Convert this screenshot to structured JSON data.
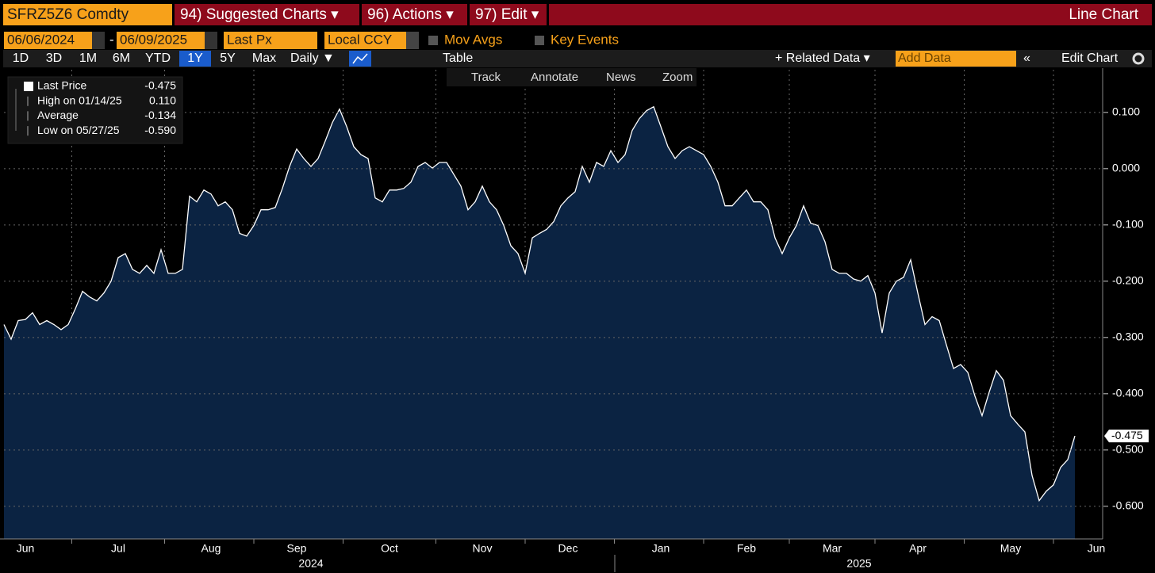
{
  "header": {
    "ticker": "SFRZ5Z6 Comdty",
    "menus": [
      "94) Suggested Charts ▾",
      "96) Actions ▾",
      "97) Edit ▾"
    ],
    "chart_type_label": "Line Chart"
  },
  "controls": {
    "start_date": "06/06/2024",
    "date_separator": "-",
    "end_date": "06/09/2025",
    "field": "Last Px",
    "currency": "Local CCY",
    "options": [
      "Mov Avgs",
      "Key Events"
    ],
    "periods": [
      "1D",
      "3D",
      "1M",
      "6M",
      "YTD",
      "1Y",
      "5Y",
      "Max"
    ],
    "selected_period_index": 5,
    "frequency": "Daily ▼",
    "table": "Table",
    "related": "+ Related Data ▾",
    "add_data": "Add Data",
    "edit_chart": "Edit Chart"
  },
  "chart_tools": [
    "Track",
    "Annotate",
    "News",
    "Zoom"
  ],
  "chart_data": {
    "type": "area",
    "color": "#ffffff",
    "fill": "#0b2342",
    "legend": [
      {
        "label": "Last Price",
        "value": "-0.475"
      },
      {
        "label": "High on 01/14/25",
        "value": "0.110"
      },
      {
        "label": "Average",
        "value": "-0.134"
      },
      {
        "label": "Low on 05/27/25",
        "value": "-0.590"
      }
    ],
    "last_label": "-0.475",
    "categories": [
      null,
      null,
      null,
      "Jun",
      null,
      null,
      null,
      null,
      null,
      null,
      null,
      null,
      null,
      null,
      null,
      null,
      "Jul",
      null,
      null,
      null,
      null,
      null,
      null,
      null,
      null,
      null,
      null,
      null,
      null,
      "Aug",
      null,
      null,
      null,
      null,
      null,
      null,
      null,
      null,
      null,
      null,
      null,
      "Sep",
      null,
      null,
      null,
      null,
      null,
      null,
      null,
      null,
      null,
      null,
      null,
      null,
      "Oct",
      null,
      null,
      null,
      null,
      null,
      null,
      null,
      null,
      null,
      null,
      null,
      null,
      "Nov",
      null,
      null,
      null,
      null,
      null,
      null,
      null,
      null,
      null,
      null,
      null,
      "Dec",
      null,
      null,
      null,
      null,
      null,
      null,
      null,
      null,
      null,
      null,
      null,
      null,
      "Jan",
      null,
      null,
      null,
      null,
      null,
      null,
      null,
      null,
      null,
      null,
      null,
      "Feb",
      null,
      null,
      null,
      null,
      null,
      null,
      null,
      null,
      null,
      null,
      null,
      "Mar",
      null,
      null,
      null,
      null,
      null,
      null,
      null,
      null,
      null,
      null,
      null,
      "Apr",
      null,
      null,
      null,
      null,
      null,
      null,
      null,
      null,
      null,
      null,
      null,
      null,
      "May",
      null,
      null,
      null,
      null,
      null,
      null,
      null,
      null,
      null,
      null,
      null,
      "Jun"
    ],
    "values": [
      -0.277,
      -0.303,
      -0.27,
      -0.268,
      -0.256,
      -0.277,
      -0.27,
      -0.277,
      -0.286,
      -0.277,
      -0.249,
      -0.218,
      -0.228,
      -0.235,
      -0.221,
      -0.2,
      -0.158,
      -0.151,
      -0.179,
      -0.186,
      -0.172,
      -0.186,
      -0.144,
      -0.186,
      -0.186,
      -0.179,
      -0.049,
      -0.059,
      -0.038,
      -0.045,
      -0.066,
      -0.059,
      -0.073,
      -0.115,
      -0.12,
      -0.101,
      -0.073,
      -0.073,
      -0.069,
      -0.035,
      0.004,
      0.035,
      0.018,
      0.004,
      0.018,
      0.049,
      0.082,
      0.106,
      0.075,
      0.039,
      0.025,
      0.018,
      -0.052,
      -0.059,
      -0.038,
      -0.038,
      -0.035,
      -0.024,
      0.004,
      0.011,
      0.001,
      0.011,
      0.011,
      -0.01,
      -0.031,
      -0.073,
      -0.059,
      -0.031,
      -0.059,
      -0.073,
      -0.101,
      -0.137,
      -0.151,
      -0.186,
      -0.123,
      -0.115,
      -0.108,
      -0.094,
      -0.066,
      -0.052,
      -0.041,
      0.004,
      -0.024,
      0.011,
      0.004,
      0.032,
      0.011,
      0.025,
      0.068,
      0.089,
      0.103,
      0.11,
      0.075,
      0.039,
      0.018,
      0.032,
      0.039,
      0.032,
      0.025,
      0.004,
      -0.024,
      -0.066,
      -0.066,
      -0.052,
      -0.038,
      -0.059,
      -0.059,
      -0.073,
      -0.123,
      -0.151,
      -0.123,
      -0.101,
      -0.066,
      -0.097,
      -0.101,
      -0.13,
      -0.179,
      -0.186,
      -0.186,
      -0.196,
      -0.2,
      -0.19,
      -0.221,
      -0.292,
      -0.221,
      -0.2,
      -0.193,
      -0.162,
      -0.221,
      -0.277,
      -0.263,
      -0.27,
      -0.313,
      -0.355,
      -0.348,
      -0.362,
      -0.404,
      -0.439,
      -0.397,
      -0.359,
      -0.376,
      -0.439,
      -0.454,
      -0.468,
      -0.545,
      -0.59,
      -0.573,
      -0.562,
      -0.531,
      -0.517,
      -0.475,
      null,
      null,
      null
    ],
    "year_labels": [
      "2024",
      "2025"
    ],
    "ylim": [
      -0.658,
      0.173
    ],
    "yticks": [
      {
        "value": 0.1,
        "label": "0.100"
      },
      {
        "value": 0,
        "label": "0.000"
      },
      {
        "value": -0.1,
        "label": "-0.100"
      },
      {
        "value": -0.2,
        "label": "-0.200"
      },
      {
        "value": -0.3,
        "label": "-0.300"
      },
      {
        "value": -0.4,
        "label": "-0.400"
      },
      {
        "value": -0.5,
        "label": "-0.500"
      },
      {
        "value": -0.6,
        "label": "-0.600"
      }
    ],
    "grid": true
  }
}
